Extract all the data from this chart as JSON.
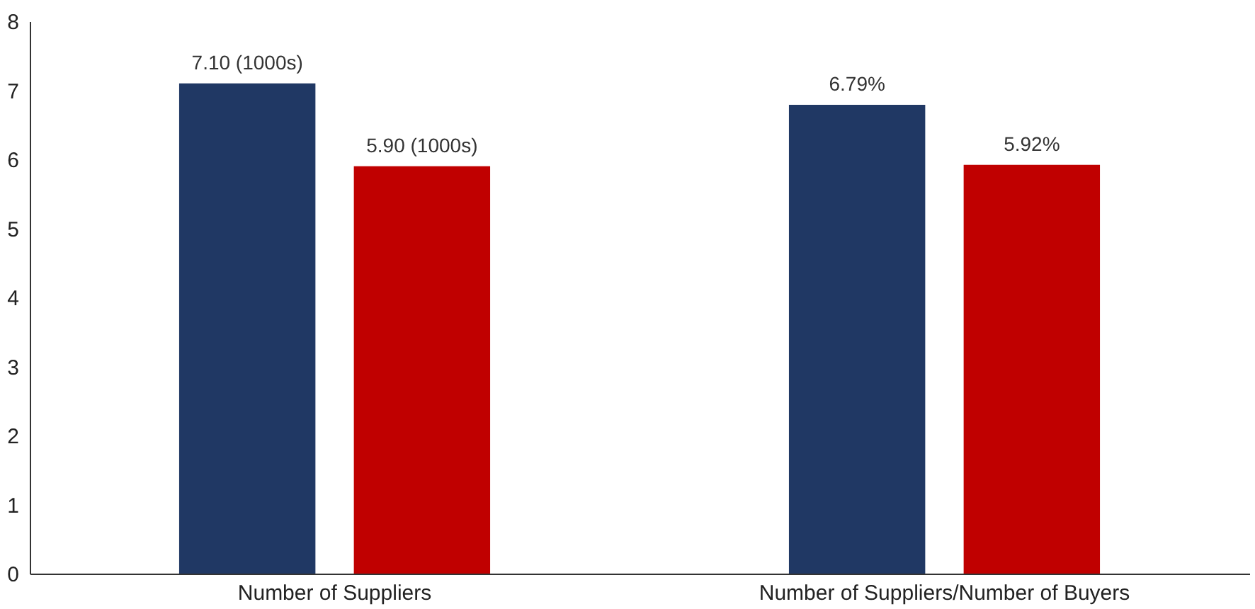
{
  "chart_data": {
    "type": "bar",
    "categories": [
      "Number of Suppliers",
      "Number of Suppliers/Number of Buyers"
    ],
    "series": [
      {
        "color": "#203864",
        "values": [
          7.1,
          6.79
        ],
        "value_labels": [
          "7.10 (1000s)",
          "6.79%"
        ]
      },
      {
        "color": "#c00000",
        "values": [
          5.9,
          5.92
        ],
        "value_labels": [
          "5.90 (1000s)",
          "5.92%"
        ]
      }
    ],
    "ylim": [
      0,
      8
    ],
    "yticks": [
      0,
      1,
      2,
      3,
      4,
      5,
      6,
      7,
      8
    ],
    "grid": false
  }
}
